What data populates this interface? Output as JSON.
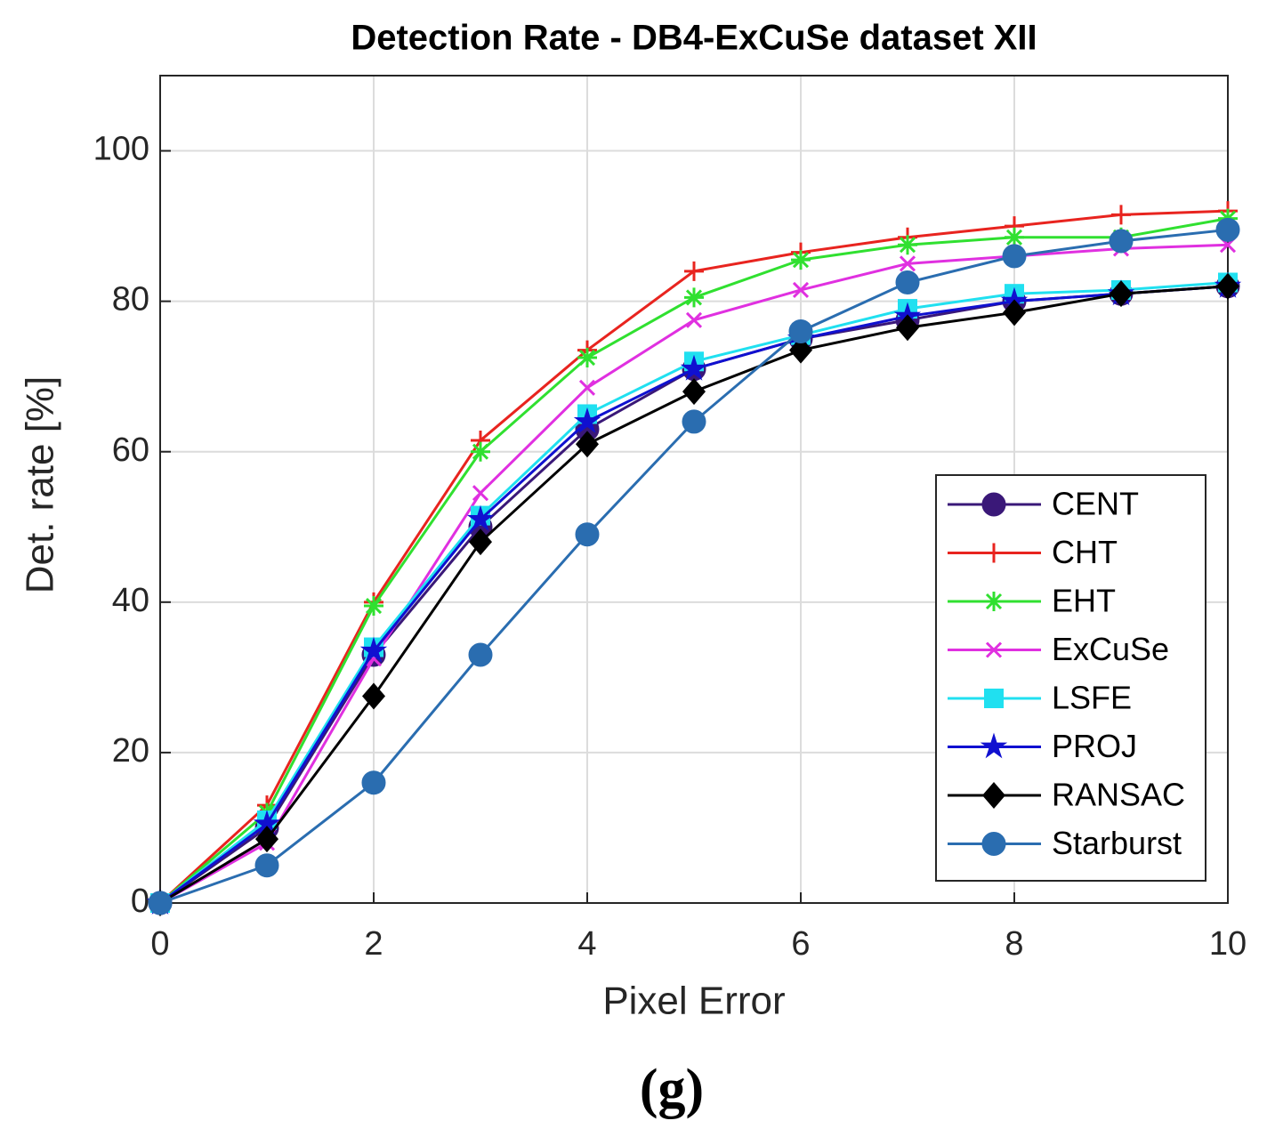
{
  "chart_data": {
    "type": "line",
    "title": "Detection Rate - DB4-ExCuSe dataset XII",
    "x_label": "Pixel Error",
    "y_label": "Det. rate [%]",
    "caption": "(g)",
    "x": [
      0,
      1,
      2,
      3,
      4,
      5,
      6,
      7,
      8,
      9,
      10
    ],
    "xlim": [
      0,
      10
    ],
    "xticks": [
      0,
      2,
      4,
      6,
      8,
      10
    ],
    "ylim": [
      0,
      110
    ],
    "yticks": [
      0,
      20,
      40,
      60,
      80,
      100
    ],
    "grid": true,
    "legend": "lower right",
    "series": [
      {
        "name": "CENT",
        "color": "#3a1878",
        "marker": "circle",
        "values": [
          0,
          10,
          33,
          50,
          63,
          71,
          75,
          77.5,
          80,
          81,
          82
        ]
      },
      {
        "name": "CHT",
        "color": "#e8241f",
        "marker": "plus",
        "values": [
          0,
          13,
          40,
          61.5,
          73.5,
          84,
          86.5,
          88.5,
          90,
          91.5,
          92
        ]
      },
      {
        "name": "EHT",
        "color": "#30e030",
        "marker": "asterisk",
        "values": [
          0,
          12,
          39.5,
          60,
          72.5,
          80.5,
          85.5,
          87.5,
          88.5,
          88.5,
          91
        ]
      },
      {
        "name": "ExCuSe",
        "color": "#e030e0",
        "marker": "x",
        "values": [
          0,
          8,
          32.5,
          54.5,
          68.5,
          77.5,
          81.5,
          85,
          86,
          87,
          87.5
        ]
      },
      {
        "name": "LSFE",
        "color": "#20e0f0",
        "marker": "square",
        "values": [
          0,
          11,
          34,
          51.5,
          65,
          72,
          75.5,
          79,
          81,
          81.5,
          82.5
        ]
      },
      {
        "name": "PROJ",
        "color": "#1010d0",
        "marker": "star",
        "values": [
          0,
          10.5,
          33.5,
          51,
          64,
          71,
          75,
          78,
          80,
          81,
          82
        ]
      },
      {
        "name": "RANSAC",
        "color": "#000000",
        "marker": "diamond",
        "values": [
          0,
          8.5,
          27.5,
          48,
          61,
          68,
          73.5,
          76.5,
          78.5,
          81,
          82
        ]
      },
      {
        "name": "Starburst",
        "color": "#2a6db0",
        "marker": "circle",
        "values": [
          0,
          5,
          16,
          33,
          49,
          64,
          76,
          82.5,
          86,
          88,
          89.5
        ]
      }
    ]
  }
}
